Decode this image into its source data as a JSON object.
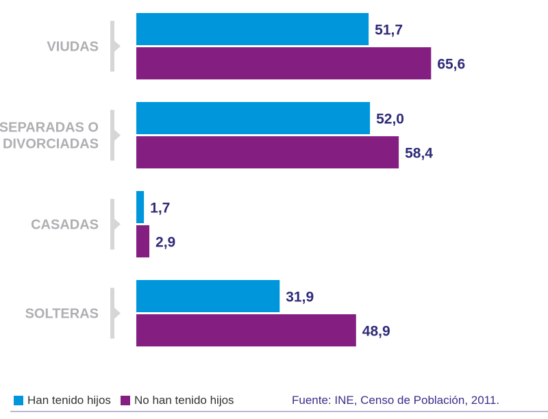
{
  "chart_data": {
    "type": "bar",
    "orientation": "horizontal",
    "categories": [
      [
        "VIUDAS"
      ],
      [
        "SEPARADAS O",
        "DIVORCIADAS"
      ],
      [
        "CASADAS"
      ],
      [
        "SOLTERAS"
      ]
    ],
    "series": [
      {
        "name": "Han tenido hijos",
        "color": "#0096dc",
        "values": [
          51.7,
          52.0,
          1.7,
          31.9
        ],
        "labels": [
          "51,7",
          "52,0",
          "1,7",
          "31,9"
        ]
      },
      {
        "name": "No han tenido hijos",
        "color": "#841e80",
        "values": [
          65.6,
          58.4,
          2.9,
          48.9
        ],
        "labels": [
          "65,6",
          "58,4",
          "2,9",
          "48,9"
        ]
      }
    ],
    "legend_position": "bottom-left",
    "grid": false,
    "value_label_color": "#2e2a78",
    "category_label_color": "#b0aeb2"
  },
  "source": "Fuente: INE, Censo de Población, 2011."
}
